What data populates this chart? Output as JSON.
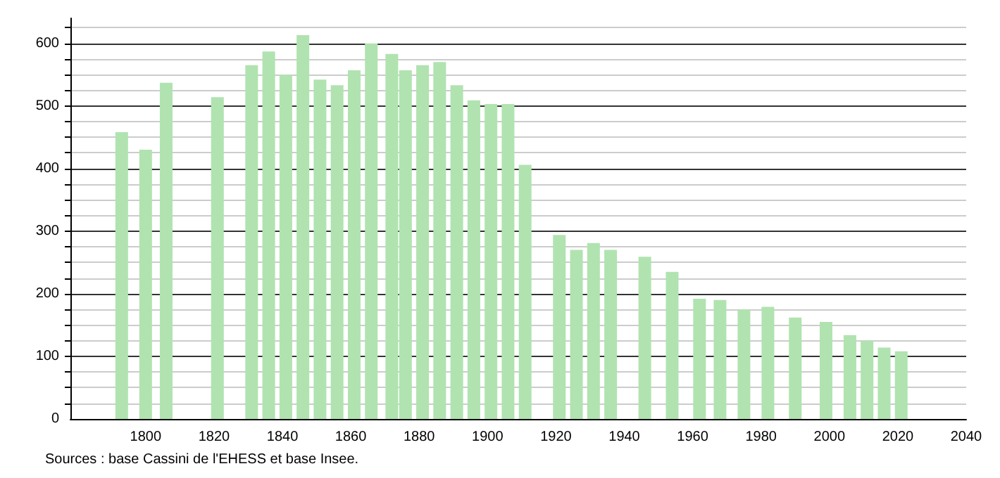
{
  "chart_data": {
    "type": "bar",
    "x": [
      1793,
      1800,
      1806,
      1821,
      1831,
      1836,
      1841,
      1846,
      1851,
      1856,
      1861,
      1866,
      1872,
      1876,
      1881,
      1886,
      1891,
      1896,
      1901,
      1906,
      1911,
      1921,
      1926,
      1931,
      1936,
      1946,
      1954,
      1962,
      1968,
      1975,
      1982,
      1990,
      1999,
      2006,
      2011,
      2016,
      2021
    ],
    "values": [
      458,
      430,
      537,
      514,
      565,
      587,
      550,
      613,
      542,
      533,
      557,
      600,
      583,
      557,
      565,
      570,
      533,
      509,
      503,
      503,
      406,
      294,
      270,
      281,
      270,
      259,
      235,
      192,
      190,
      175,
      179,
      162,
      155,
      134,
      125,
      114,
      108
    ],
    "color": "#b0e3b0",
    "xlim": [
      1778,
      2040
    ],
    "xticks": [
      1800,
      1820,
      1840,
      1860,
      1880,
      1900,
      1920,
      1940,
      1960,
      1980,
      2000,
      2020,
      2040
    ],
    "ylim": [
      0,
      640
    ],
    "yticks": [
      0,
      {
        "value": 25,
        "label": null
      },
      {
        "value": 50,
        "label": null
      },
      {
        "value": 75,
        "label": null
      },
      100,
      {
        "value": 125,
        "label": null
      },
      {
        "value": 150,
        "label": null
      },
      {
        "value": 175,
        "label": null
      },
      200,
      {
        "value": 225,
        "label": null
      },
      {
        "value": 250,
        "label": null
      },
      {
        "value": 275,
        "label": null
      },
      300,
      {
        "value": 325,
        "label": null
      },
      {
        "value": 350,
        "label": null
      },
      {
        "value": 375,
        "label": null
      },
      400,
      {
        "value": 425,
        "label": null
      },
      {
        "value": 450,
        "label": null
      },
      {
        "value": 475,
        "label": null
      },
      500,
      {
        "value": 525,
        "label": null
      },
      {
        "value": 550,
        "label": null
      },
      {
        "value": 575,
        "label": null
      },
      600,
      {
        "value": 625,
        "label": null
      }
    ],
    "grid": "y",
    "annotations": [
      "Sources : base Cassini de l'EHESS et base Insee."
    ]
  }
}
